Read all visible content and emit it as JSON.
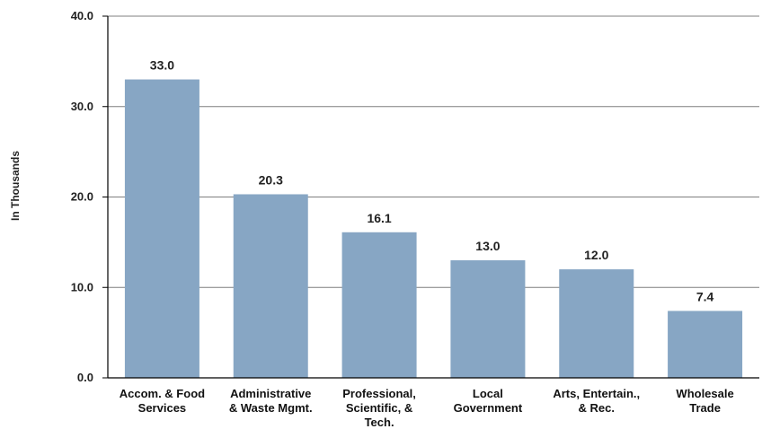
{
  "chart_data": {
    "type": "bar",
    "title": "",
    "xlabel": "",
    "ylabel": "In Thousands",
    "ylim": [
      0,
      40
    ],
    "yticks": [
      "0.0",
      "10.0",
      "20.0",
      "30.0",
      "40.0"
    ],
    "grid": true,
    "categories": [
      [
        "Accom. & Food",
        "Services"
      ],
      [
        "Administrative",
        "& Waste Mgmt."
      ],
      [
        "Professional,",
        "Scientific, &",
        "Tech."
      ],
      [
        "Local",
        "Government"
      ],
      [
        "Arts, Entertain.,",
        "& Rec."
      ],
      [
        "Wholesale",
        "Trade"
      ]
    ],
    "values": [
      33.0,
      20.3,
      16.1,
      13.0,
      12.0,
      7.4
    ],
    "value_labels": [
      "33.0",
      "20.3",
      "16.1",
      "13.0",
      "12.0",
      "7.4"
    ],
    "colors": {
      "bar": "#87a6c4",
      "grid": "#7f7f7f",
      "axis": "#000000"
    }
  }
}
